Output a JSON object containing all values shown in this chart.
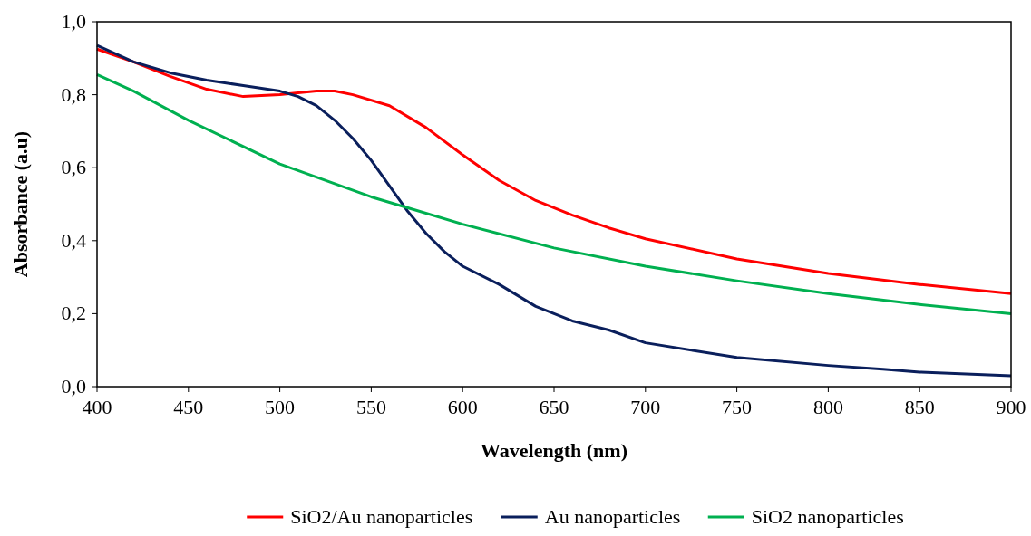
{
  "chart_data": {
    "type": "line",
    "xlabel": "Wavelength (nm)",
    "ylabel": "Absorbance (a.u)",
    "xlim": [
      400,
      900
    ],
    "xticks": [
      400,
      450,
      500,
      550,
      600,
      650,
      700,
      750,
      800,
      850,
      900
    ],
    "ylim": [
      0,
      1
    ],
    "yticks": [
      {
        "value": 0,
        "label": "0,0"
      },
      {
        "value": 0.2,
        "label": "0,2"
      },
      {
        "value": 0.4,
        "label": "0,4"
      },
      {
        "value": 0.6,
        "label": "0,6"
      },
      {
        "value": 0.8,
        "label": "0,8"
      },
      {
        "value": 1,
        "label": "1,0"
      }
    ],
    "grid": false,
    "legend": "bottom",
    "marker": "none",
    "line_style": "solid",
    "series": [
      {
        "name": "SiO2/Au nanoparticles",
        "color": "#ff0000",
        "x": [
          400,
          420,
          440,
          460,
          480,
          500,
          520,
          530,
          540,
          560,
          580,
          600,
          620,
          640,
          660,
          680,
          700,
          750,
          800,
          850,
          900
        ],
        "values": [
          0.925,
          0.89,
          0.85,
          0.815,
          0.795,
          0.8,
          0.81,
          0.81,
          0.8,
          0.77,
          0.71,
          0.635,
          0.565,
          0.51,
          0.47,
          0.435,
          0.405,
          0.35,
          0.31,
          0.28,
          0.255
        ]
      },
      {
        "name": "Au nanoparticles",
        "color": "#0a1f5c",
        "x": [
          400,
          420,
          440,
          460,
          480,
          500,
          510,
          520,
          530,
          540,
          550,
          560,
          570,
          580,
          590,
          600,
          620,
          640,
          660,
          680,
          700,
          750,
          800,
          830,
          850,
          900
        ],
        "values": [
          0.935,
          0.89,
          0.86,
          0.84,
          0.825,
          0.81,
          0.795,
          0.77,
          0.73,
          0.68,
          0.62,
          0.55,
          0.48,
          0.42,
          0.37,
          0.33,
          0.28,
          0.22,
          0.18,
          0.155,
          0.12,
          0.08,
          0.058,
          0.048,
          0.04,
          0.03
        ]
      },
      {
        "name": "SiO2 nanoparticles",
        "color": "#00b050",
        "x": [
          400,
          420,
          450,
          500,
          550,
          570,
          600,
          650,
          700,
          750,
          800,
          850,
          900
        ],
        "values": [
          0.855,
          0.81,
          0.73,
          0.61,
          0.52,
          0.49,
          0.445,
          0.38,
          0.33,
          0.29,
          0.255,
          0.225,
          0.2
        ]
      }
    ]
  }
}
